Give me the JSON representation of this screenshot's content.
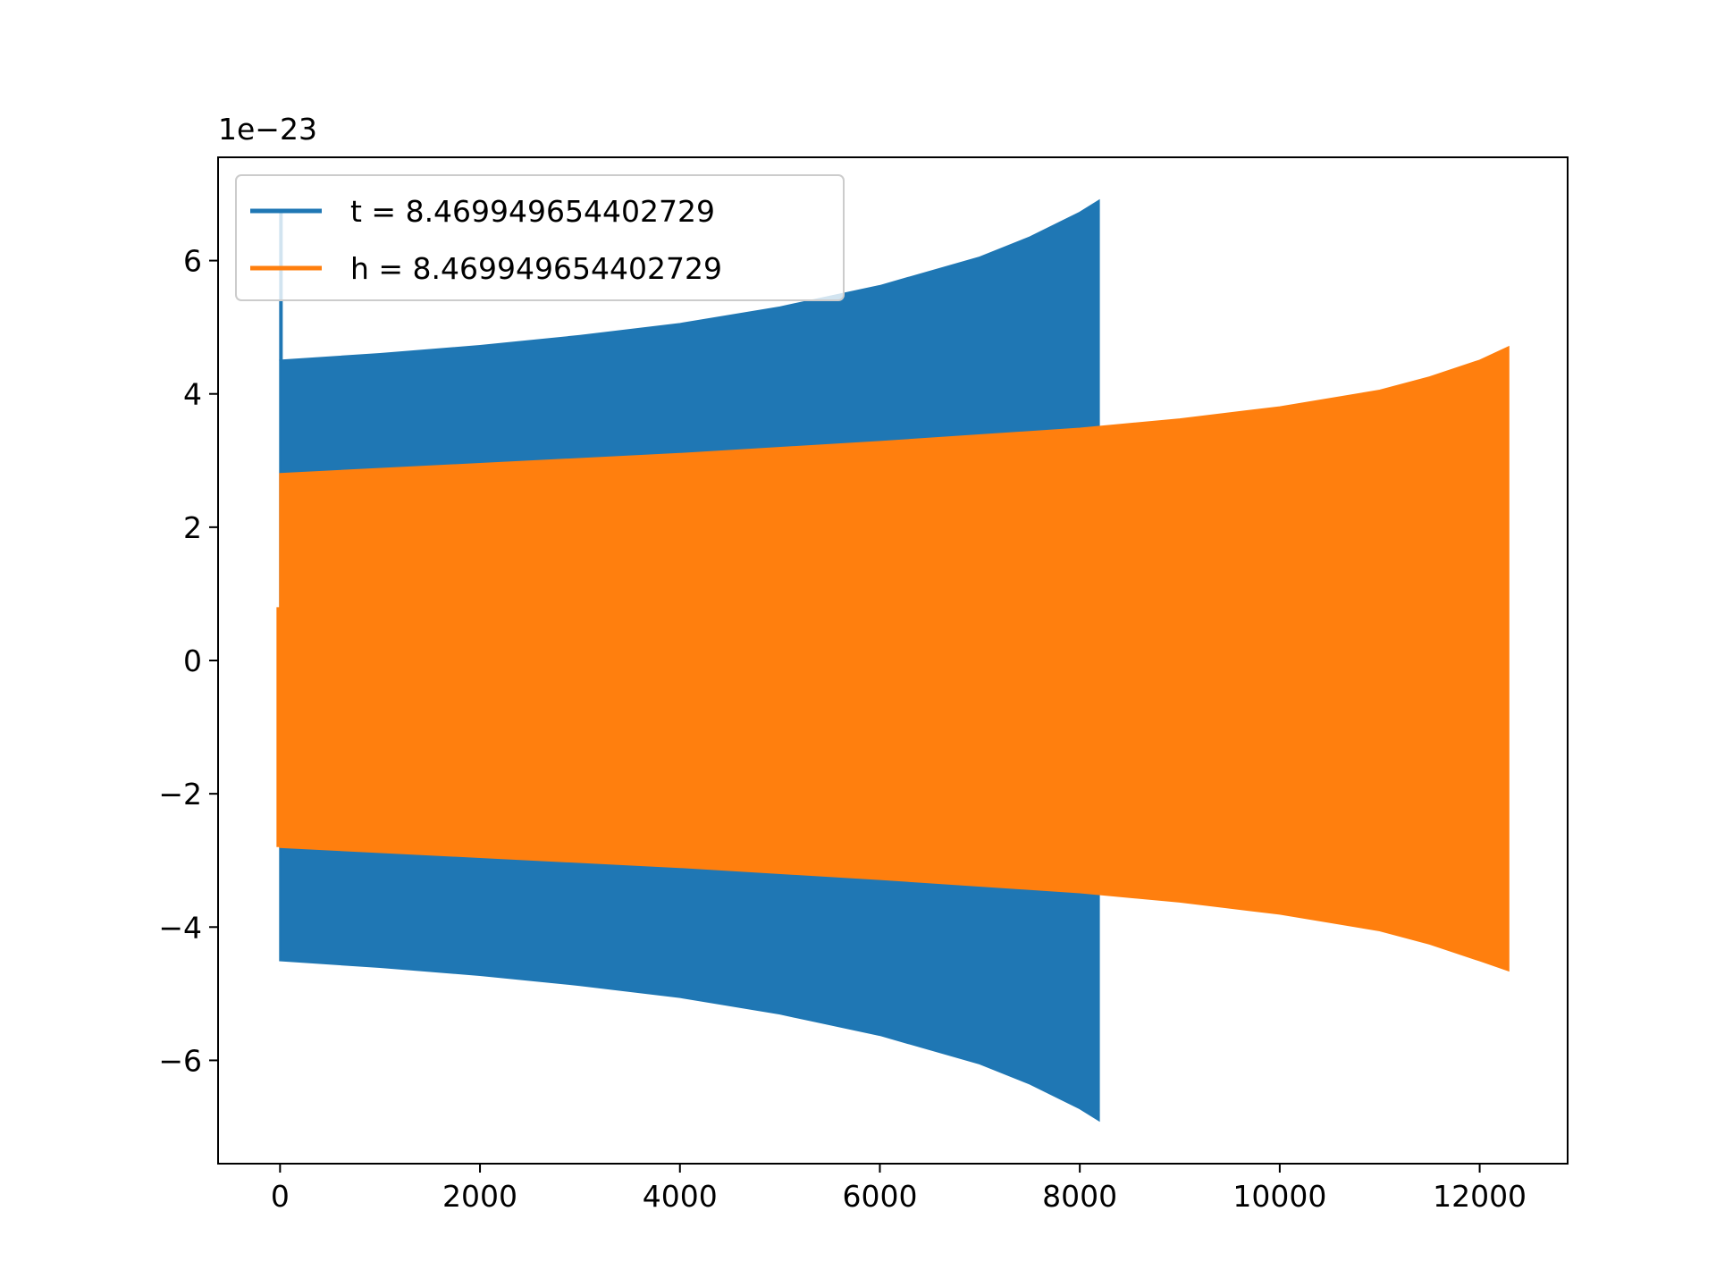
{
  "chart_data": {
    "type": "line",
    "title": "",
    "xlabel": "",
    "ylabel": "",
    "y_offset_label": "1e−23",
    "xlim": [
      -620,
      12880
    ],
    "ylim": [
      -7.55,
      7.55
    ],
    "x_ticks": [
      0,
      2000,
      4000,
      6000,
      8000,
      10000,
      12000
    ],
    "x_tick_labels": [
      "0",
      "2000",
      "4000",
      "6000",
      "8000",
      "10000",
      "12000"
    ],
    "y_ticks": [
      -6,
      -4,
      -2,
      0,
      2,
      4,
      6
    ],
    "y_tick_labels": [
      "−6",
      "−4",
      "−2",
      "0",
      "2",
      "4",
      "6"
    ],
    "grid": false,
    "legend_position": "upper-left",
    "series": [
      {
        "name": "t = 8.469949654402729",
        "color": "#1f77b4",
        "style": "dense oscillation (envelope shown)",
        "initial_spike": {
          "x": 0,
          "y": 6.75
        },
        "envelope": {
          "x": [
            0,
            1000,
            2000,
            3000,
            4000,
            5000,
            6000,
            7000,
            7500,
            8000,
            8192
          ],
          "upper": [
            4.5,
            4.6,
            4.72,
            4.87,
            5.05,
            5.3,
            5.62,
            6.05,
            6.35,
            6.72,
            6.9
          ],
          "lower": [
            -4.5,
            -4.6,
            -4.72,
            -4.87,
            -5.05,
            -5.3,
            -5.62,
            -6.05,
            -6.35,
            -6.72,
            -6.9
          ]
        }
      },
      {
        "name": "h = 8.469949654402729",
        "color": "#ff7f0e",
        "style": "dense oscillation (envelope shown)",
        "initial_value": {
          "x": 0,
          "y": 0.8
        },
        "envelope": {
          "x": [
            0,
            2000,
            4000,
            6000,
            8000,
            9000,
            10000,
            11000,
            11500,
            12000,
            12288
          ],
          "upper": [
            2.8,
            2.95,
            3.1,
            3.28,
            3.48,
            3.62,
            3.8,
            4.05,
            4.25,
            4.5,
            4.7
          ],
          "lower": [
            -2.8,
            -2.95,
            -3.1,
            -3.28,
            -3.48,
            -3.62,
            -3.8,
            -4.05,
            -4.25,
            -4.5,
            -4.65
          ]
        }
      }
    ]
  }
}
